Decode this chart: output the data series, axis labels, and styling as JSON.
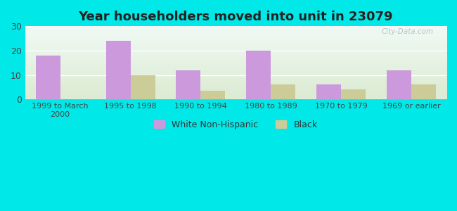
{
  "title": "Year householders moved into unit in 23079",
  "categories": [
    "1999 to March\n2000",
    "1995 to 1998",
    "1990 to 1994",
    "1980 to 1989",
    "1970 to 1979",
    "1969 or earlier"
  ],
  "white_non_hispanic": [
    18,
    24,
    12,
    20,
    6,
    12
  ],
  "black": [
    0,
    10,
    3.5,
    6,
    4,
    6
  ],
  "bar_color_white": "#cc99dd",
  "bar_color_black": "#cccc99",
  "ylim": [
    0,
    30
  ],
  "yticks": [
    0,
    10,
    20,
    30
  ],
  "bar_width": 0.35,
  "background_outer": "#00e8e8",
  "background_inner_topleft": "#d8ede0",
  "background_inner_topright": "#f0f8f8",
  "background_inner_bottom": "#e8f0d8",
  "grid_color": "#ffffff",
  "legend_white": "White Non-Hispanic",
  "legend_black": "Black",
  "watermark": "City-Data.com",
  "title_fontsize": 13,
  "tick_fontsize": 8
}
